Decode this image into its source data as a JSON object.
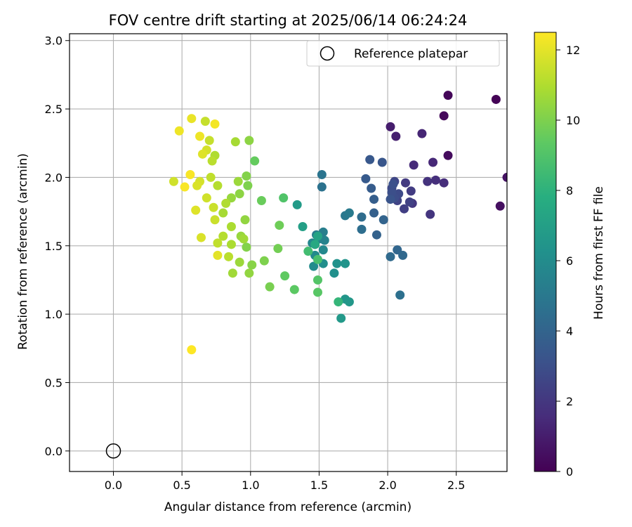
{
  "chart_data": {
    "type": "scatter",
    "title": "FOV centre drift starting at 2025/06/14 06:24:24",
    "xlabel": "Angular distance from reference (arcmin)",
    "ylabel": "Rotation from reference (arcmin)",
    "xlim": [
      -0.32,
      2.87
    ],
    "ylim": [
      -0.15,
      3.05
    ],
    "xticks": [
      0.0,
      0.5,
      1.0,
      1.5,
      2.0,
      2.5
    ],
    "xtick_labels": [
      "0.0",
      "0.5",
      "1.0",
      "1.5",
      "2.0",
      "2.5"
    ],
    "yticks": [
      0.0,
      0.5,
      1.0,
      1.5,
      2.0,
      2.5,
      3.0
    ],
    "ytick_labels": [
      "0.0",
      "0.5",
      "1.0",
      "1.5",
      "2.0",
      "2.5",
      "3.0"
    ],
    "grid": true,
    "legend_position": "top-right",
    "reference": {
      "label": "Reference platepar",
      "x": 0.0,
      "y": 0.0
    },
    "colorbar": {
      "label": "Hours from first FF file",
      "colormap": "viridis",
      "range": [
        0,
        12.5
      ],
      "ticks": [
        0,
        2,
        4,
        6,
        8,
        10,
        12
      ],
      "tick_labels": [
        "0",
        "2",
        "4",
        "6",
        "8",
        "10",
        "12"
      ]
    },
    "points": [
      [
        2.79,
        2.57,
        0.1
      ],
      [
        2.44,
        2.6,
        0.2
      ],
      [
        2.41,
        2.45,
        0.3
      ],
      [
        2.44,
        2.16,
        0.4
      ],
      [
        2.82,
        1.79,
        0.5
      ],
      [
        2.87,
        2.0,
        0.6
      ],
      [
        2.02,
        2.37,
        1.0
      ],
      [
        2.06,
        2.3,
        1.1
      ],
      [
        2.25,
        2.32,
        1.3
      ],
      [
        2.33,
        2.11,
        1.4
      ],
      [
        2.19,
        2.09,
        1.5
      ],
      [
        2.41,
        1.96,
        1.6
      ],
      [
        2.35,
        1.98,
        1.7
      ],
      [
        2.29,
        1.97,
        1.8
      ],
      [
        2.31,
        1.73,
        1.9
      ],
      [
        2.18,
        1.81,
        2.0
      ],
      [
        2.13,
        1.96,
        2.1
      ],
      [
        2.17,
        1.9,
        2.2
      ],
      [
        2.12,
        1.77,
        2.3
      ],
      [
        2.16,
        1.82,
        2.4
      ],
      [
        2.07,
        1.83,
        2.5
      ],
      [
        2.05,
        1.97,
        2.6
      ],
      [
        2.03,
        1.92,
        2.7
      ],
      [
        2.08,
        1.88,
        2.8
      ],
      [
        2.05,
        1.85,
        2.9
      ],
      [
        2.03,
        1.89,
        3.0
      ],
      [
        2.04,
        1.95,
        3.1
      ],
      [
        2.02,
        1.84,
        3.2
      ],
      [
        1.96,
        2.11,
        3.3
      ],
      [
        1.87,
        2.13,
        3.4
      ],
      [
        1.84,
        1.99,
        3.5
      ],
      [
        1.88,
        1.92,
        3.6
      ],
      [
        1.9,
        1.84,
        3.7
      ],
      [
        1.9,
        1.74,
        3.8
      ],
      [
        1.92,
        1.58,
        3.9
      ],
      [
        1.97,
        1.69,
        4.0
      ],
      [
        2.07,
        1.47,
        4.1
      ],
      [
        2.11,
        1.43,
        4.2
      ],
      [
        2.02,
        1.42,
        4.3
      ],
      [
        1.81,
        1.71,
        4.4
      ],
      [
        1.81,
        1.62,
        4.5
      ],
      [
        2.09,
        1.14,
        4.6
      ],
      [
        1.52,
        1.93,
        4.7
      ],
      [
        1.52,
        2.02,
        4.8
      ],
      [
        1.69,
        1.72,
        5.0
      ],
      [
        1.72,
        1.74,
        5.1
      ],
      [
        1.48,
        1.58,
        5.2
      ],
      [
        1.53,
        1.6,
        5.3
      ],
      [
        1.5,
        1.55,
        5.4
      ],
      [
        1.54,
        1.54,
        5.5
      ],
      [
        1.47,
        1.51,
        5.6
      ],
      [
        1.45,
        1.52,
        5.7
      ],
      [
        1.53,
        1.47,
        5.8
      ],
      [
        1.47,
        1.43,
        5.9
      ],
      [
        1.46,
        1.35,
        6.0
      ],
      [
        1.53,
        1.37,
        6.1
      ],
      [
        1.61,
        1.3,
        6.2
      ],
      [
        1.63,
        1.37,
        6.3
      ],
      [
        1.69,
        1.37,
        6.4
      ],
      [
        1.69,
        1.11,
        6.5
      ],
      [
        1.72,
        1.09,
        6.6
      ],
      [
        1.66,
        0.97,
        6.7
      ],
      [
        1.34,
        1.8,
        6.8
      ],
      [
        1.38,
        1.64,
        7.0
      ],
      [
        1.49,
        1.57,
        7.2
      ],
      [
        1.47,
        1.51,
        7.5
      ],
      [
        1.64,
        1.09,
        8.2
      ],
      [
        1.42,
        1.46,
        8.6
      ],
      [
        1.49,
        1.4,
        8.8
      ],
      [
        1.24,
        1.85,
        9.0
      ],
      [
        1.49,
        1.25,
        9.1
      ],
      [
        1.49,
        1.16,
        9.2
      ],
      [
        1.32,
        1.18,
        9.3
      ],
      [
        1.25,
        1.28,
        9.4
      ],
      [
        1.03,
        2.12,
        9.5
      ],
      [
        1.08,
        1.83,
        9.6
      ],
      [
        1.21,
        1.65,
        9.7
      ],
      [
        1.2,
        1.48,
        9.8
      ],
      [
        1.14,
        1.2,
        9.9
      ],
      [
        1.1,
        1.39,
        10.0
      ],
      [
        0.98,
        1.94,
        10.0
      ],
      [
        0.97,
        2.01,
        10.1
      ],
      [
        0.97,
        1.49,
        10.1
      ],
      [
        1.01,
        1.36,
        10.2
      ],
      [
        0.99,
        2.27,
        10.3
      ],
      [
        0.92,
        1.88,
        10.3
      ],
      [
        0.96,
        1.69,
        10.4
      ],
      [
        0.99,
        1.3,
        10.4
      ],
      [
        0.93,
        1.57,
        10.5
      ],
      [
        0.86,
        1.85,
        10.5
      ],
      [
        0.92,
        1.38,
        10.6
      ],
      [
        0.91,
        1.97,
        10.6
      ],
      [
        0.95,
        1.55,
        10.7
      ],
      [
        0.87,
        1.3,
        10.7
      ],
      [
        0.8,
        1.74,
        10.8
      ],
      [
        0.89,
        2.26,
        10.8
      ],
      [
        0.86,
        1.64,
        10.9
      ],
      [
        0.86,
        1.51,
        10.9
      ],
      [
        0.82,
        1.81,
        11.0
      ],
      [
        0.74,
        2.16,
        11.0
      ],
      [
        0.8,
        1.57,
        11.1
      ],
      [
        0.76,
        1.94,
        11.1
      ],
      [
        0.72,
        2.12,
        11.2
      ],
      [
        0.84,
        1.42,
        11.2
      ],
      [
        0.71,
        2.0,
        11.3
      ],
      [
        0.76,
        1.52,
        11.3
      ],
      [
        0.7,
        2.27,
        11.4
      ],
      [
        0.67,
        2.41,
        11.4
      ],
      [
        0.74,
        1.69,
        11.5
      ],
      [
        0.73,
        1.78,
        11.5
      ],
      [
        0.44,
        1.97,
        11.6
      ],
      [
        0.68,
        1.85,
        11.6
      ],
      [
        0.68,
        2.2,
        11.7
      ],
      [
        0.63,
        1.97,
        11.7
      ],
      [
        0.61,
        1.94,
        11.8
      ],
      [
        0.64,
        1.56,
        11.8
      ],
      [
        0.65,
        2.17,
        11.9
      ],
      [
        0.6,
        1.76,
        11.9
      ],
      [
        0.76,
        1.43,
        12.0
      ],
      [
        0.57,
        2.43,
        12.1
      ],
      [
        0.48,
        2.34,
        12.2
      ],
      [
        0.63,
        2.3,
        12.2
      ],
      [
        0.74,
        2.39,
        12.3
      ],
      [
        0.56,
        2.02,
        12.4
      ],
      [
        0.52,
        1.93,
        12.4
      ],
      [
        0.57,
        0.74,
        12.5
      ]
    ]
  }
}
